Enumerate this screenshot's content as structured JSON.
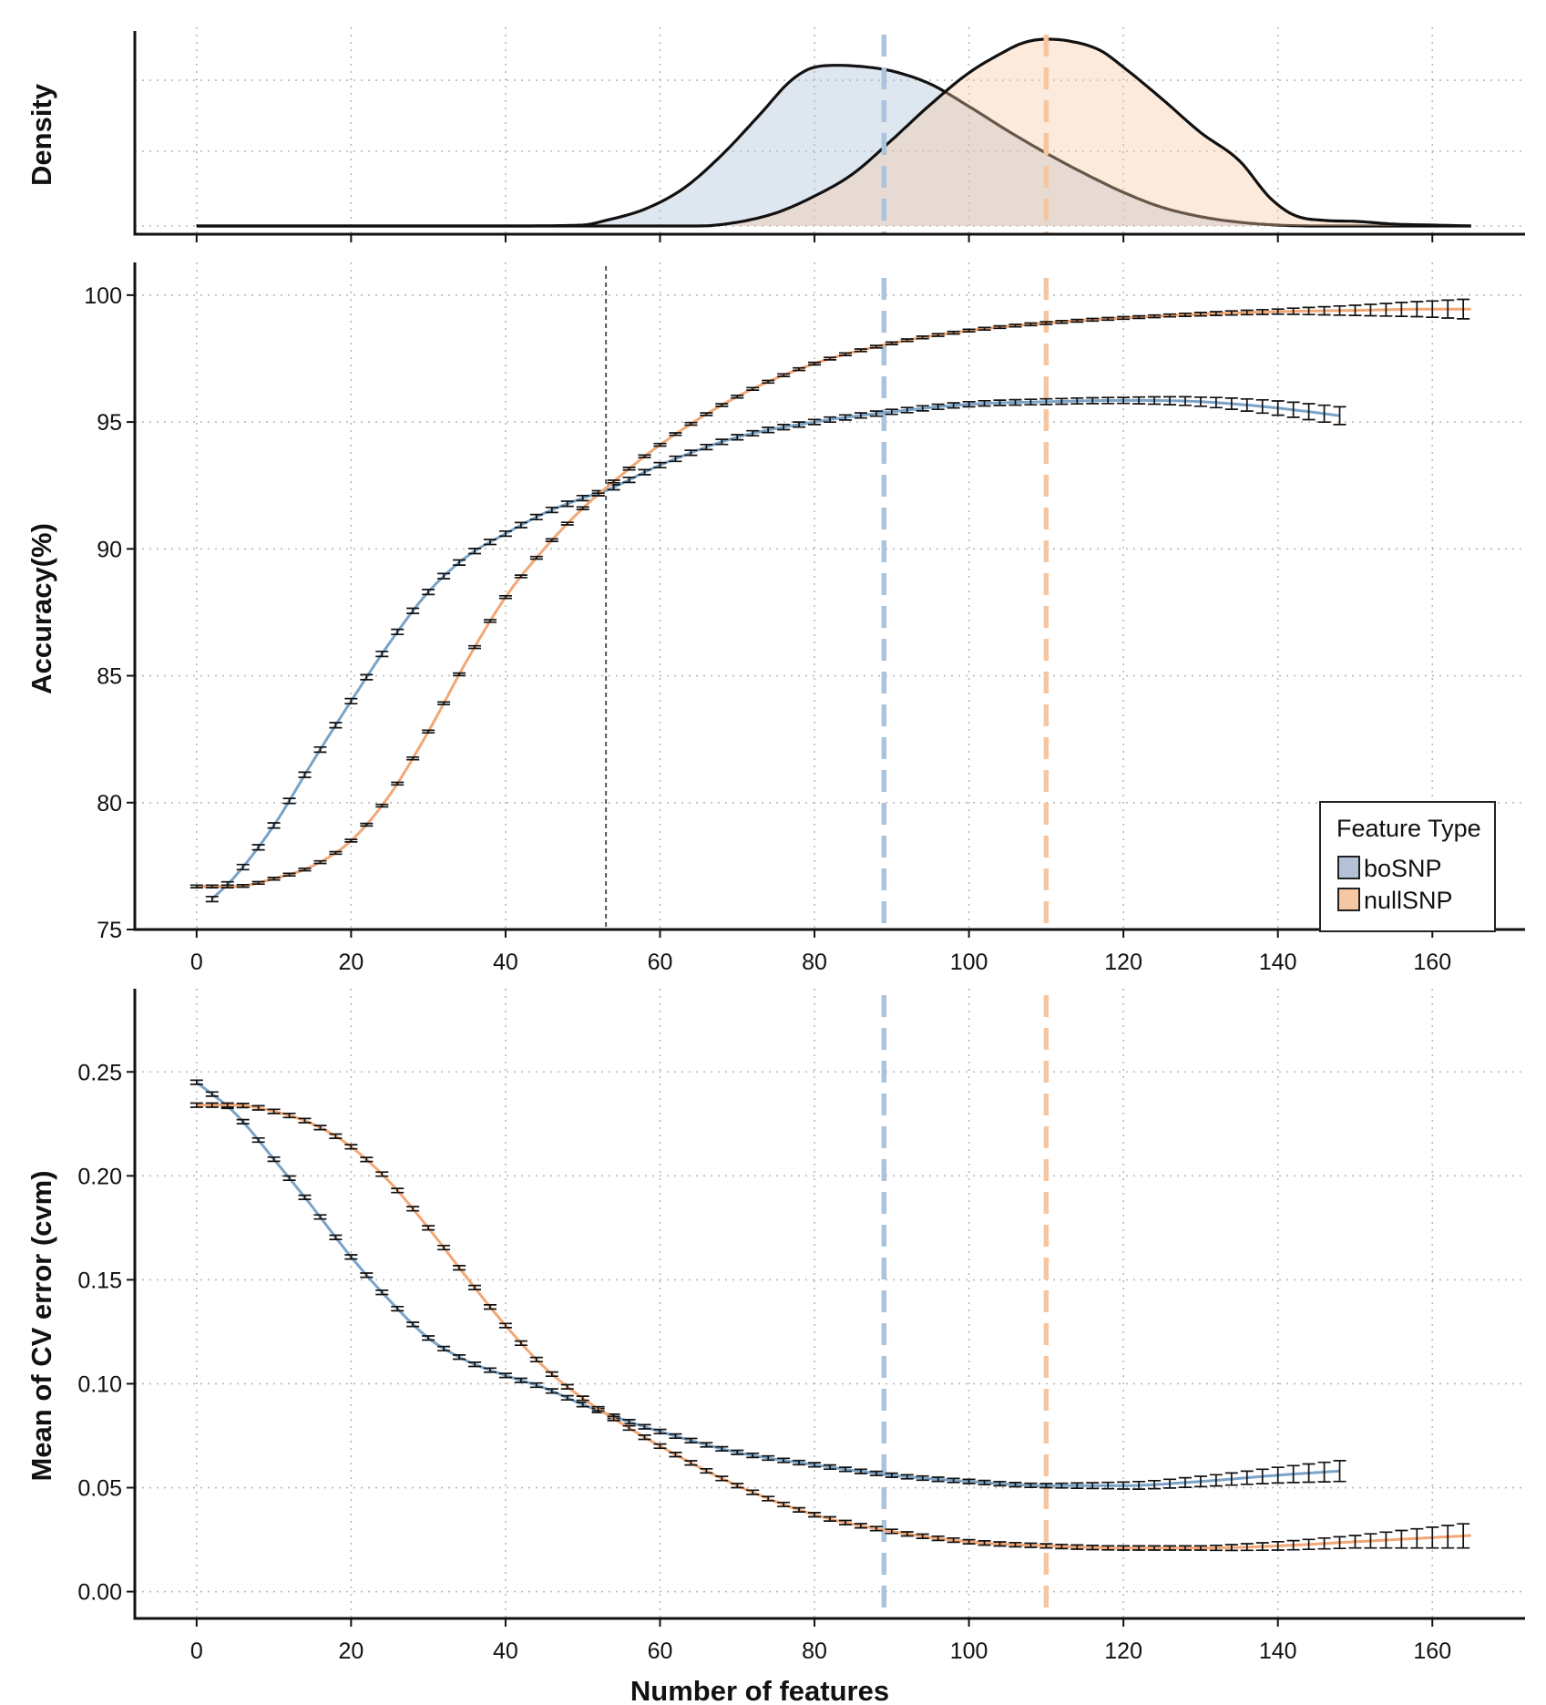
{
  "chart_data": [
    {
      "type": "area",
      "panel": "density",
      "ylabel": "Density",
      "xlim": [
        -8,
        172
      ],
      "series": [
        {
          "name": "boSNP",
          "color": "#a9bdd8",
          "points": [
            [
              0,
              0
            ],
            [
              40,
              0
            ],
            [
              50,
              0.005
            ],
            [
              53,
              0.03
            ],
            [
              58,
              0.09
            ],
            [
              63,
              0.2
            ],
            [
              68,
              0.38
            ],
            [
              73,
              0.6
            ],
            [
              77,
              0.78
            ],
            [
              80,
              0.85
            ],
            [
              83,
              0.86
            ],
            [
              87,
              0.85
            ],
            [
              90,
              0.83
            ],
            [
              95,
              0.76
            ],
            [
              100,
              0.64
            ],
            [
              105,
              0.51
            ],
            [
              110,
              0.39
            ],
            [
              115,
              0.28
            ],
            [
              120,
              0.18
            ],
            [
              125,
              0.1
            ],
            [
              130,
              0.05
            ],
            [
              135,
              0.02
            ],
            [
              140,
              0.005
            ],
            [
              145,
              0
            ],
            [
              165,
              0
            ]
          ]
        },
        {
          "name": "nullSNP",
          "color": "#f8c9a3",
          "points": [
            [
              0,
              0
            ],
            [
              65,
              0
            ],
            [
              70,
              0.02
            ],
            [
              75,
              0.07
            ],
            [
              80,
              0.16
            ],
            [
              85,
              0.28
            ],
            [
              90,
              0.46
            ],
            [
              95,
              0.65
            ],
            [
              100,
              0.82
            ],
            [
              104,
              0.92
            ],
            [
              107,
              0.98
            ],
            [
              110,
              1.0
            ],
            [
              113,
              0.99
            ],
            [
              117,
              0.94
            ],
            [
              120,
              0.85
            ],
            [
              125,
              0.68
            ],
            [
              130,
              0.5
            ],
            [
              135,
              0.35
            ],
            [
              139,
              0.15
            ],
            [
              142,
              0.06
            ],
            [
              146,
              0.03
            ],
            [
              150,
              0.025
            ],
            [
              155,
              0.01
            ],
            [
              160,
              0.005
            ],
            [
              165,
              0
            ]
          ]
        }
      ],
      "vlines": [
        {
          "x": 89,
          "color": "#a9c4dc",
          "series": "boSNP"
        },
        {
          "x": 110,
          "color": "#f6c6a0",
          "series": "nullSNP"
        }
      ]
    },
    {
      "type": "line",
      "panel": "accuracy",
      "ylabel": "Accuracy(%)",
      "ylim": [
        75,
        101
      ],
      "yticks": [
        "75",
        "80",
        "85",
        "90",
        "95",
        "100"
      ],
      "series": [
        {
          "name": "boSNP",
          "color": "#7ba3c6",
          "x_start": 2,
          "x_end": 148,
          "x_step": 2,
          "points": [
            [
              2,
              76.2
            ],
            [
              5,
              77.1
            ],
            [
              10,
              79.1
            ],
            [
              15,
              81.6
            ],
            [
              20,
              84.0
            ],
            [
              25,
              86.3
            ],
            [
              30,
              88.3
            ],
            [
              35,
              89.7
            ],
            [
              40,
              90.6
            ],
            [
              45,
              91.4
            ],
            [
              50,
              92.0
            ],
            [
              53,
              92.3
            ],
            [
              60,
              93.3
            ],
            [
              70,
              94.4
            ],
            [
              80,
              95.0
            ],
            [
              90,
              95.4
            ],
            [
              100,
              95.7
            ],
            [
              110,
              95.8
            ],
            [
              120,
              95.85
            ],
            [
              130,
              95.8
            ],
            [
              140,
              95.55
            ],
            [
              148,
              95.25
            ]
          ],
          "error_points": [
            [
              2,
              0.1
            ],
            [
              100,
              0.1
            ],
            [
              120,
              0.12
            ],
            [
              130,
              0.18
            ],
            [
              140,
              0.28
            ],
            [
              148,
              0.35
            ]
          ]
        },
        {
          "name": "nullSNP",
          "color": "#f2a776",
          "x_start": 0,
          "x_end": 165,
          "x_step": 2,
          "points": [
            [
              0,
              76.7
            ],
            [
              5,
              76.7
            ],
            [
              10,
              77.0
            ],
            [
              15,
              77.5
            ],
            [
              20,
              78.5
            ],
            [
              25,
              80.3
            ],
            [
              30,
              82.8
            ],
            [
              35,
              85.6
            ],
            [
              40,
              88.1
            ],
            [
              45,
              90.0
            ],
            [
              50,
              91.6
            ],
            [
              53,
              92.4
            ],
            [
              60,
              94.1
            ],
            [
              70,
              96.0
            ],
            [
              80,
              97.3
            ],
            [
              90,
              98.1
            ],
            [
              100,
              98.6
            ],
            [
              110,
              98.9
            ],
            [
              120,
              99.1
            ],
            [
              130,
              99.25
            ],
            [
              140,
              99.35
            ],
            [
              150,
              99.4
            ],
            [
              160,
              99.45
            ],
            [
              165,
              99.45
            ]
          ],
          "error_points": [
            [
              0,
              0.05
            ],
            [
              125,
              0.05
            ],
            [
              140,
              0.1
            ],
            [
              150,
              0.2
            ],
            [
              160,
              0.32
            ],
            [
              165,
              0.4
            ]
          ]
        }
      ],
      "vlines": [
        {
          "x": 53,
          "color": "#555555",
          "style": "dotted"
        },
        {
          "x": 89,
          "color": "#a9c4dc",
          "series": "boSNP"
        },
        {
          "x": 110,
          "color": "#f6c6a0",
          "series": "nullSNP"
        }
      ],
      "xticks": [
        "0",
        "20",
        "40",
        "60",
        "80",
        "100",
        "120",
        "140",
        "160"
      ],
      "legend": {
        "title": "Feature Type",
        "position": "bottom-right",
        "entries": [
          {
            "label": "boSNP",
            "color": "#b3c2d6"
          },
          {
            "label": "nullSNP",
            "color": "#f5c7a3"
          }
        ]
      }
    },
    {
      "type": "line",
      "panel": "cv_error",
      "ylabel": "Mean of CV error (cvm)",
      "xlabel": "Number of features",
      "ylim": [
        -0.005,
        0.29
      ],
      "yticks": [
        "0.00",
        "0.05",
        "0.10",
        "0.15",
        "0.20",
        "0.25"
      ],
      "series": [
        {
          "name": "boSNP",
          "color": "#7ba3c6",
          "x_start": 0,
          "x_end": 148,
          "x_step": 2,
          "points": [
            [
              0,
              0.245
            ],
            [
              5,
              0.23
            ],
            [
              10,
              0.208
            ],
            [
              15,
              0.185
            ],
            [
              20,
              0.161
            ],
            [
              25,
              0.14
            ],
            [
              30,
              0.122
            ],
            [
              35,
              0.111
            ],
            [
              40,
              0.104
            ],
            [
              45,
              0.098
            ],
            [
              50,
              0.09
            ],
            [
              55,
              0.083
            ],
            [
              60,
              0.077
            ],
            [
              70,
              0.067
            ],
            [
              80,
              0.061
            ],
            [
              90,
              0.056
            ],
            [
              100,
              0.053
            ],
            [
              110,
              0.051
            ],
            [
              120,
              0.051
            ],
            [
              130,
              0.053
            ],
            [
              140,
              0.056
            ],
            [
              148,
              0.058
            ]
          ],
          "error_points": [
            [
              0,
              0.001
            ],
            [
              110,
              0.001
            ],
            [
              125,
              0.002
            ],
            [
              135,
              0.003
            ],
            [
              148,
              0.005
            ]
          ]
        },
        {
          "name": "nullSNP",
          "color": "#f2a776",
          "x_start": 0,
          "x_end": 165,
          "x_step": 2,
          "points": [
            [
              0,
              0.234
            ],
            [
              5,
              0.234
            ],
            [
              10,
              0.231
            ],
            [
              15,
              0.225
            ],
            [
              20,
              0.214
            ],
            [
              25,
              0.197
            ],
            [
              30,
              0.175
            ],
            [
              35,
              0.151
            ],
            [
              40,
              0.128
            ],
            [
              45,
              0.108
            ],
            [
              50,
              0.093
            ],
            [
              55,
              0.081
            ],
            [
              60,
              0.07
            ],
            [
              70,
              0.051
            ],
            [
              80,
              0.037
            ],
            [
              90,
              0.029
            ],
            [
              100,
              0.024
            ],
            [
              110,
              0.022
            ],
            [
              120,
              0.021
            ],
            [
              130,
              0.021
            ],
            [
              140,
              0.022
            ],
            [
              150,
              0.024
            ],
            [
              160,
              0.026
            ],
            [
              165,
              0.027
            ]
          ],
          "error_points": [
            [
              0,
              0.001
            ],
            [
              130,
              0.001
            ],
            [
              140,
              0.002
            ],
            [
              150,
              0.003
            ],
            [
              160,
              0.005
            ],
            [
              165,
              0.006
            ]
          ]
        }
      ],
      "vlines": [
        {
          "x": 89,
          "color": "#a9c4dc",
          "series": "boSNP"
        },
        {
          "x": 110,
          "color": "#f6c6a0",
          "series": "nullSNP"
        }
      ],
      "xticks": [
        "0",
        "20",
        "40",
        "60",
        "80",
        "100",
        "120",
        "140",
        "160"
      ]
    }
  ]
}
